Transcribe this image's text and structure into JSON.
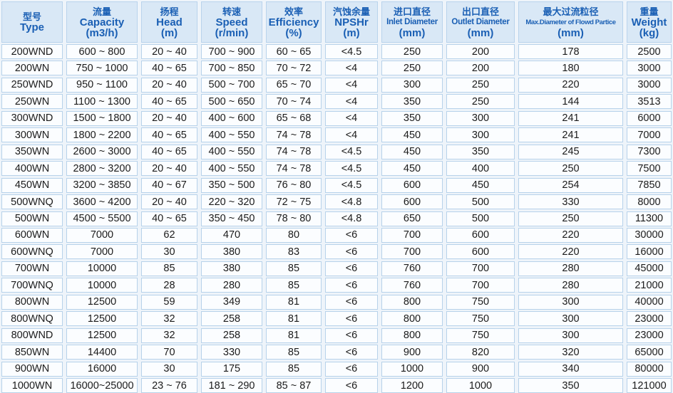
{
  "headers": [
    {
      "cn": "型号",
      "en": "Type",
      "unit": ""
    },
    {
      "cn": "流量",
      "en": "Capacity",
      "unit": "(m3/h)"
    },
    {
      "cn": "扬程",
      "en": "Head",
      "unit": "(m)"
    },
    {
      "cn": "转速",
      "en": "Speed",
      "unit": "(r/min)"
    },
    {
      "cn": "效率",
      "en": "Efficiency",
      "unit": "(%)"
    },
    {
      "cn": "汽蚀余量",
      "en": "NPSHr",
      "unit": "(m)"
    },
    {
      "cn": "进口直径",
      "en": "Inlet Diameter",
      "unit": "(mm)"
    },
    {
      "cn": "出口直径",
      "en": "Outlet Diameter",
      "unit": "(mm)"
    },
    {
      "cn": "最大过流粒径",
      "en": "Max.Diameter of Flowd Partice",
      "unit": "(mm)"
    },
    {
      "cn": "重量",
      "en": "Weight",
      "unit": "(kg)"
    }
  ],
  "rows": [
    [
      "200WND",
      "600 ~ 800",
      "20 ~ 40",
      "700 ~ 900",
      "60 ~ 65",
      "<4.5",
      "250",
      "200",
      "178",
      "2500"
    ],
    [
      "200WN",
      "750 ~ 1000",
      "40 ~ 65",
      "700 ~ 850",
      "70 ~ 72",
      "<4",
      "250",
      "200",
      "180",
      "3000"
    ],
    [
      "250WND",
      "950 ~ 1100",
      "20 ~ 40",
      "500 ~ 700",
      "65 ~ 70",
      "<4",
      "300",
      "250",
      "220",
      "3000"
    ],
    [
      "250WN",
      "1100 ~ 1300",
      "40 ~ 65",
      "500 ~ 650",
      "70 ~ 74",
      "<4",
      "350",
      "250",
      "144",
      "3513"
    ],
    [
      "300WND",
      "1500 ~ 1800",
      "20 ~ 40",
      "400 ~ 600",
      "65 ~ 68",
      "<4",
      "350",
      "300",
      "241",
      "6000"
    ],
    [
      "300WN",
      "1800 ~ 2200",
      "40 ~ 65",
      "400 ~ 550",
      "74 ~ 78",
      "<4",
      "450",
      "300",
      "241",
      "7000"
    ],
    [
      "350WN",
      "2600 ~ 3000",
      "40 ~ 65",
      "400 ~ 550",
      "74 ~ 78",
      "<4.5",
      "450",
      "350",
      "245",
      "7300"
    ],
    [
      "400WN",
      "2800 ~ 3200",
      "20 ~ 40",
      "400 ~ 550",
      "74 ~ 78",
      "<4.5",
      "450",
      "400",
      "250",
      "7500"
    ],
    [
      "450WN",
      "3200 ~ 3850",
      "40 ~ 67",
      "350 ~ 500",
      "76 ~ 80",
      "<4.5",
      "600",
      "450",
      "254",
      "7850"
    ],
    [
      "500WNQ",
      "3600 ~ 4200",
      "20 ~ 40",
      "220 ~ 320",
      "72 ~ 75",
      "<4.8",
      "600",
      "500",
      "330",
      "8000"
    ],
    [
      "500WN",
      "4500 ~ 5500",
      "40 ~ 65",
      "350 ~ 450",
      "78 ~ 80",
      "<4.8",
      "650",
      "500",
      "250",
      "11300"
    ],
    [
      "600WN",
      "7000",
      "62",
      "470",
      "80",
      "<6",
      "700",
      "600",
      "220",
      "30000"
    ],
    [
      "600WNQ",
      "7000",
      "30",
      "380",
      "83",
      "<6",
      "700",
      "600",
      "220",
      "16000"
    ],
    [
      "700WN",
      "10000",
      "85",
      "380",
      "85",
      "<6",
      "760",
      "700",
      "280",
      "45000"
    ],
    [
      "700WNQ",
      "10000",
      "28",
      "280",
      "85",
      "<6",
      "760",
      "700",
      "280",
      "21000"
    ],
    [
      "800WN",
      "12500",
      "59",
      "349",
      "81",
      "<6",
      "800",
      "750",
      "300",
      "40000"
    ],
    [
      "800WNQ",
      "12500",
      "32",
      "258",
      "81",
      "<6",
      "800",
      "750",
      "300",
      "23000"
    ],
    [
      "800WND",
      "12500",
      "32",
      "258",
      "81",
      "<6",
      "800",
      "750",
      "300",
      "23000"
    ],
    [
      "850WN",
      "14400",
      "70",
      "330",
      "85",
      "<6",
      "900",
      "820",
      "320",
      "65000"
    ],
    [
      "900WN",
      "16000",
      "30",
      "175",
      "85",
      "<6",
      "1000",
      "900",
      "340",
      "80000"
    ],
    [
      "1000WN",
      "16000~25000",
      "23 ~ 76",
      "181 ~ 290",
      "85 ~ 87",
      "<6",
      "1200",
      "1000",
      "350",
      "121000"
    ]
  ]
}
